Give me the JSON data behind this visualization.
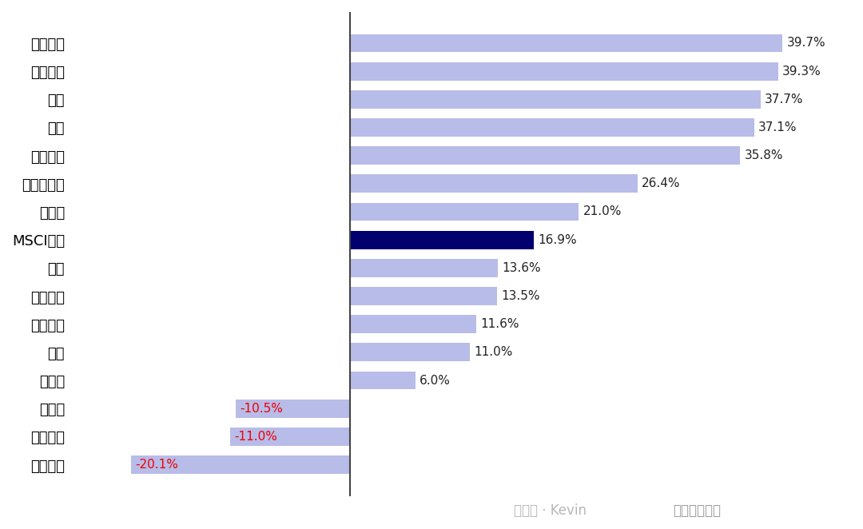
{
  "categories": [
    "信息技术",
    "多元金融",
    "保险",
    "银行",
    "电信服务",
    "媒体和娱乐",
    "资本品",
    "MSCI中国",
    "运输",
    "公用事业",
    "可选消费",
    "能源",
    "原材料",
    "房地产",
    "必选消费",
    "医疗保健"
  ],
  "values": [
    39.7,
    39.3,
    37.7,
    37.1,
    35.8,
    26.4,
    21.0,
    16.9,
    13.6,
    13.5,
    11.6,
    11.0,
    6.0,
    -10.5,
    -11.0,
    -20.1
  ],
  "bar_colors": [
    "#b8bce8",
    "#b8bce8",
    "#b8bce8",
    "#b8bce8",
    "#b8bce8",
    "#b8bce8",
    "#b8bce8",
    "#00006e",
    "#b8bce8",
    "#b8bce8",
    "#b8bce8",
    "#b8bce8",
    "#b8bce8",
    "#b8bce8",
    "#b8bce8",
    "#b8bce8"
  ],
  "positive_label_color": "#222222",
  "negative_label_color": "#ee0000",
  "background_color": "#ffffff",
  "figsize": [
    10.8,
    6.62
  ],
  "dpi": 100
}
